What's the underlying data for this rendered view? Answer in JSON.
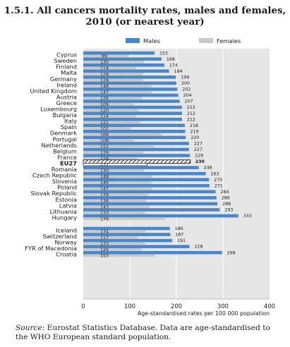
{
  "title_line1": "1.5.1.  All cancers mortality rates, males and females,",
  "title_line2": "2010 (or nearest year)",
  "source_label": "Source:",
  "source_text": " Eurostat Statistics Database. Data are age-standardised to the WHO European standard population.",
  "colors": {
    "males": "#4a86c8",
    "females": "#c8c8c8",
    "background": "#e6e6e6"
  },
  "chart_data": {
    "type": "bar",
    "orientation": "horizontal",
    "xlabel": "Age-standardised rates per 100 000 population",
    "xlim": [
      0,
      400
    ],
    "xticks": [
      "0",
      "100",
      "200",
      "300",
      "400"
    ],
    "legend": [
      "Males",
      "Females"
    ],
    "legend_position": "top",
    "grid": true,
    "groups": [
      {
        "rows": [
          {
            "country": "Cyprus",
            "males": 153,
            "females": 99
          },
          {
            "country": "Sweden",
            "males": 168,
            "females": 130
          },
          {
            "country": "Finland",
            "males": 174,
            "females": 114
          },
          {
            "country": "Malta",
            "males": 184,
            "females": 128
          },
          {
            "country": "Germany",
            "males": 199,
            "females": 128
          },
          {
            "country": "Ireland",
            "males": 200,
            "females": 148
          },
          {
            "country": "United Kingdom",
            "males": 202,
            "females": 147
          },
          {
            "country": "Austria",
            "males": 204,
            "females": 126
          },
          {
            "country": "Greece",
            "males": 207,
            "females": 109
          },
          {
            "country": "Luxembourg",
            "males": 212,
            "females": 120
          },
          {
            "country": "Bulgaria",
            "males": 212,
            "females": 114
          },
          {
            "country": "Italy",
            "males": 212,
            "females": 122
          },
          {
            "country": "Spain",
            "males": 218,
            "females": 102
          },
          {
            "country": "Denmark",
            "males": 219,
            "females": 168
          },
          {
            "country": "Portugal",
            "males": 220,
            "females": 108
          },
          {
            "country": "Netherlands",
            "males": 227,
            "females": 152
          },
          {
            "country": "Belgium",
            "males": 227,
            "females": 129
          },
          {
            "country": "France",
            "males": 229,
            "females": 116
          },
          {
            "country": "EU27",
            "males": 230,
            "females": 137,
            "highlight": true
          },
          {
            "country": "Romania",
            "males": 248,
            "females": 130
          },
          {
            "country": "Czech Republic",
            "males": 263,
            "females": 148
          },
          {
            "country": "Slovenia",
            "males": 270,
            "females": 146
          },
          {
            "country": "Poland",
            "males": 271,
            "females": 147
          },
          {
            "country": "Slovak Republic",
            "males": 284,
            "females": 139
          },
          {
            "country": "Estonia",
            "males": 286,
            "females": 136
          },
          {
            "country": "Latvia",
            "males": 288,
            "females": 143
          },
          {
            "country": "Lithuania",
            "males": 293,
            "females": 133
          },
          {
            "country": "Hungary",
            "males": 333,
            "females": 176
          }
        ]
      },
      {
        "rows": [
          {
            "country": "Iceland",
            "males": 186,
            "females": 134
          },
          {
            "country": "Switzerland",
            "males": 187,
            "females": 117
          },
          {
            "country": "Norway",
            "males": 191,
            "females": 133
          },
          {
            "country": "FYR of Macedonia",
            "males": 228,
            "females": 126
          },
          {
            "country": "Croatia",
            "males": 298,
            "females": 153
          }
        ]
      }
    ]
  }
}
